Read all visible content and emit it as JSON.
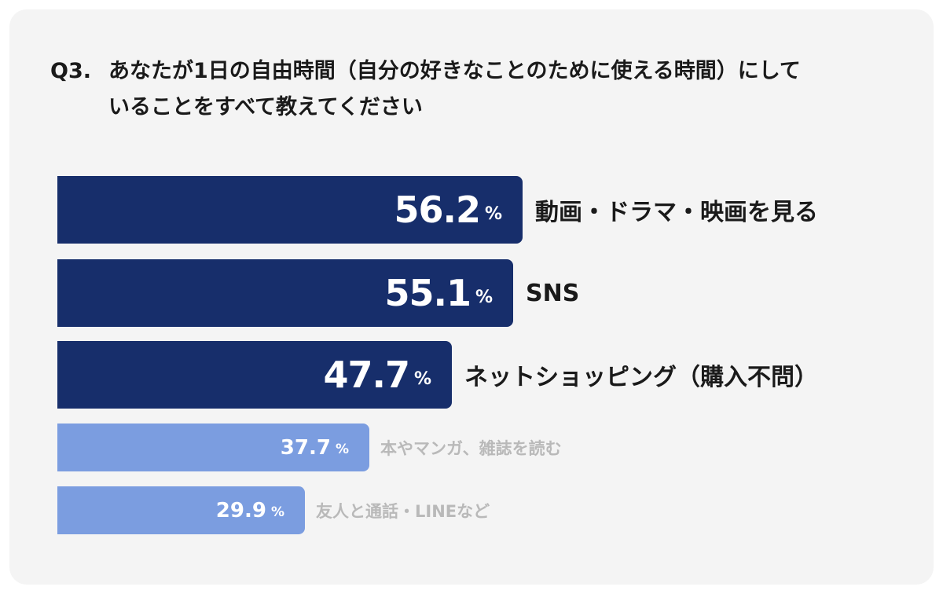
{
  "question": {
    "number": "Q3.",
    "text": "あなたが1日の自由時間（自分の好きなことのために使える時間）にしていることをすべて教えてください"
  },
  "colors": {
    "highlight": "#172e6b",
    "normal": "#7b9de0",
    "label_highlight": "#1a1a1a",
    "label_normal": "#b9b9b9"
  },
  "chart_data": {
    "type": "bar",
    "orientation": "horizontal",
    "unit": "%",
    "categories": [
      "動画・ドラマ・映画を見る",
      "SNS",
      "ネットショッピング（購入不問）",
      "本やマンガ、雑誌を読む",
      "友人と通話・LINEなど"
    ],
    "values": [
      56.2,
      55.1,
      47.7,
      37.7,
      29.9
    ],
    "value_labels": [
      "56.2",
      "55.1",
      "47.7",
      "37.7",
      "29.9"
    ],
    "highlighted": [
      true,
      true,
      true,
      false,
      false
    ],
    "title": "",
    "xlabel": "",
    "ylabel": "",
    "xlim": [
      0,
      100
    ],
    "grid": false,
    "legend": "none"
  }
}
